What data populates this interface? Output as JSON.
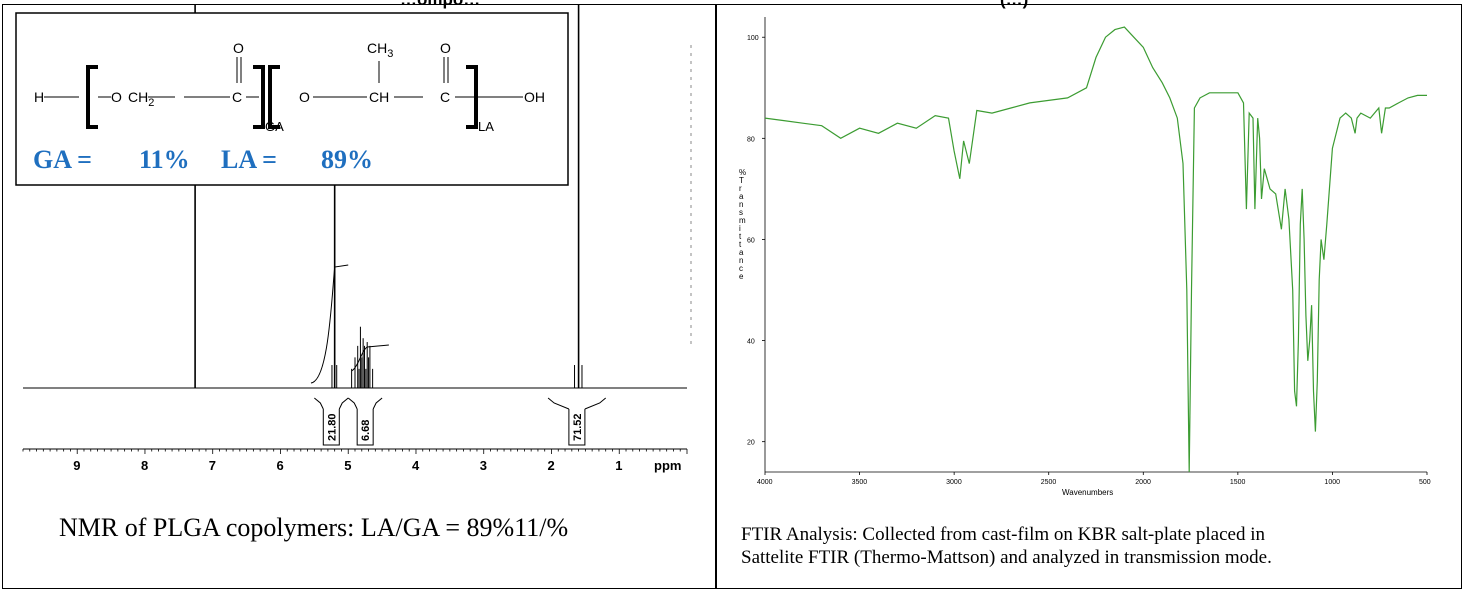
{
  "top_fragment_left": "…ompo…",
  "top_fragment_right": "(…)",
  "structure": {
    "atoms": {
      "h": "H",
      "o": "O",
      "oh": "OH",
      "ch2": "CH",
      "ch2_sub": "2",
      "c": "C",
      "ch": "CH",
      "ch3": "CH",
      "ch3_sub": "3",
      "carbonyl_o": "O"
    },
    "subscripts": {
      "ga": "GA",
      "la": "LA"
    },
    "composition": {
      "ga_label": "GA =",
      "ga_value": "11%",
      "la_label": "LA =",
      "la_value": "89%"
    }
  },
  "nmr": {
    "caption": "NMR of PLGA copolymers: LA/GA = 89%11/%",
    "axis_unit": "ppm",
    "integrals": [
      "21.80",
      "6.68",
      "71.52"
    ]
  },
  "ftir": {
    "caption": "FTIR Analysis: Collected from cast-film on KBR salt-plate placed in Sattelite FTIR (Thermo-Mattson) and analyzed in transmission mode.",
    "ylabel": "% Transmittance",
    "xlabel": "Wavenumbers"
  },
  "colors": {
    "composition_blue": "#1f6fbf",
    "ftir_green": "#3c9c32"
  },
  "chart_data": [
    {
      "type": "line",
      "title": "",
      "xlabel": "ppm",
      "ylabel": "",
      "xlim": [
        9.8,
        0
      ],
      "x_reversed": true,
      "x_ticks": [
        9,
        8,
        7,
        6,
        5,
        4,
        3,
        2,
        1
      ],
      "peaks": [
        {
          "ppm": 7.26,
          "height": 1.0
        },
        {
          "ppm": 5.2,
          "height": 0.78
        },
        {
          "ppm": 4.82,
          "height": 0.16
        },
        {
          "ppm": 4.78,
          "height": 0.13
        },
        {
          "ppm": 4.72,
          "height": 0.12
        },
        {
          "ppm": 1.6,
          "height": 1.0
        }
      ],
      "integrals": [
        {
          "from_ppm": 5.5,
          "to_ppm": 5.0,
          "value": 21.8
        },
        {
          "from_ppm": 5.0,
          "to_ppm": 4.5,
          "value": 6.68
        },
        {
          "from_ppm": 2.05,
          "to_ppm": 1.2,
          "value": 71.52
        }
      ]
    },
    {
      "type": "line",
      "title": "",
      "xlabel": "Wavenumbers",
      "ylabel": "% Transmittance",
      "xlim": [
        4000,
        500
      ],
      "x_reversed": true,
      "ylim": [
        14,
        104
      ],
      "x_ticks": [
        4000,
        3500,
        3000,
        2500,
        2000,
        1500,
        1000,
        500
      ],
      "y_ticks": [
        20,
        40,
        60,
        80,
        100
      ],
      "series": [
        {
          "x": [
            4000,
            3900,
            3800,
            3700,
            3600,
            3500,
            3400,
            3300,
            3200,
            3100,
            3030,
            3000,
            2970,
            2950,
            2920,
            2880,
            2800,
            2700,
            2600,
            2500,
            2400,
            2300,
            2250,
            2200,
            2150,
            2100,
            2050,
            2000,
            1950,
            1900,
            1860,
            1820,
            1790,
            1770,
            1757,
            1745,
            1730,
            1700,
            1650,
            1600,
            1550,
            1500,
            1470,
            1455,
            1440,
            1420,
            1410,
            1395,
            1385,
            1375,
            1360,
            1330,
            1300,
            1270,
            1250,
            1230,
            1210,
            1200,
            1190,
            1180,
            1170,
            1160,
            1150,
            1140,
            1130,
            1120,
            1110,
            1100,
            1090,
            1080,
            1070,
            1060,
            1045,
            1030,
            1000,
            960,
            930,
            900,
            880,
            870,
            850,
            800,
            755,
            740,
            720,
            700,
            650,
            600,
            550,
            500
          ],
          "y": [
            84,
            82,
            83,
            81,
            80,
            80.5,
            81,
            81.5,
            82,
            83,
            84,
            76,
            72,
            78,
            75,
            84,
            85,
            86,
            87,
            87.5,
            88,
            90,
            96,
            100,
            101.5,
            102,
            100,
            98,
            94,
            91,
            88,
            84,
            75,
            50,
            14,
            50,
            86,
            88,
            89,
            89,
            89,
            89,
            87,
            66,
            85,
            84,
            66,
            84,
            80,
            68,
            74,
            70,
            69,
            62,
            70,
            64,
            50,
            30,
            27,
            40,
            63,
            70,
            60,
            45,
            36,
            40,
            47,
            30,
            22,
            32,
            52,
            60,
            56,
            63,
            78,
            84,
            85,
            84,
            81,
            84,
            85,
            84,
            86,
            81,
            86,
            86,
            87,
            88,
            88.5,
            88.5
          ]
        }
      ]
    }
  ]
}
